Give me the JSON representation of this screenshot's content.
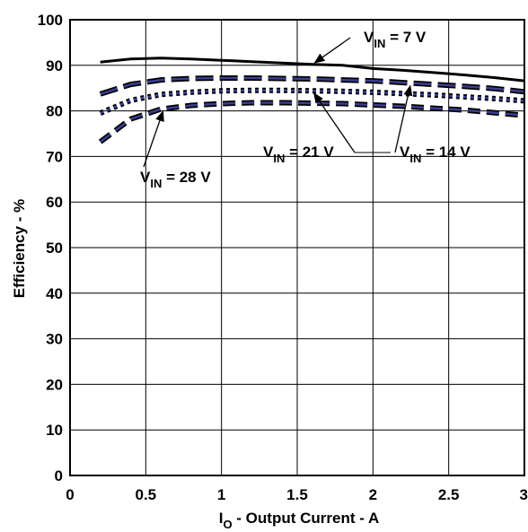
{
  "chart_data": {
    "type": "line",
    "title": "",
    "xlabel": {
      "pre": "I",
      "sub": "O",
      "post": " - Output Current - A"
    },
    "ylabel": "Efficiency - %",
    "xlim": [
      0,
      3
    ],
    "ylim": [
      0,
      100
    ],
    "xticks": [
      0,
      0.5,
      1,
      1.5,
      2,
      2.5,
      3
    ],
    "xtick_labels": [
      "0",
      "0.5",
      "1",
      "1.5",
      "2",
      "2.5",
      "3"
    ],
    "yticks": [
      0,
      10,
      20,
      30,
      40,
      50,
      60,
      70,
      80,
      90,
      100
    ],
    "ytick_labels": [
      "0",
      "10",
      "20",
      "30",
      "40",
      "50",
      "60",
      "70",
      "80",
      "90",
      "100"
    ],
    "grid": true,
    "legend": "none",
    "series": [
      {
        "name": "VIN = 7 V",
        "style": "solid",
        "x": [
          0.2,
          0.4,
          0.6,
          0.8,
          1.0,
          1.2,
          1.4,
          1.6,
          1.8,
          2.0,
          2.2,
          2.4,
          2.6,
          2.8,
          3.0
        ],
        "y": [
          90.7,
          91.4,
          91.6,
          91.4,
          91.1,
          90.8,
          90.5,
          90.2,
          90.0,
          89.3,
          88.9,
          88.4,
          87.9,
          87.3,
          86.6
        ]
      },
      {
        "name": "VIN = 14 V",
        "style": "long-dash",
        "x": [
          0.2,
          0.4,
          0.6,
          0.8,
          1.0,
          1.2,
          1.4,
          1.6,
          1.8,
          2.0,
          2.2,
          2.4,
          2.6,
          2.8,
          3.0
        ],
        "y": [
          83.7,
          85.8,
          86.8,
          87.1,
          87.2,
          87.2,
          87.1,
          87.0,
          86.8,
          86.6,
          86.2,
          85.8,
          85.4,
          84.9,
          84.2
        ]
      },
      {
        "name": "VIN = 21 V",
        "style": "dotted",
        "x": [
          0.2,
          0.4,
          0.6,
          0.8,
          1.0,
          1.2,
          1.4,
          1.6,
          1.8,
          2.0,
          2.2,
          2.4,
          2.6,
          2.8,
          3.0
        ],
        "y": [
          79.5,
          82.3,
          83.6,
          84.1,
          84.4,
          84.5,
          84.5,
          84.4,
          84.3,
          84.1,
          83.8,
          83.5,
          83.1,
          82.7,
          82.2
        ]
      },
      {
        "name": "VIN = 28 V",
        "style": "dash",
        "x": [
          0.2,
          0.4,
          0.6,
          0.8,
          1.0,
          1.2,
          1.4,
          1.6,
          1.8,
          2.0,
          2.2,
          2.4,
          2.6,
          2.8,
          3.0
        ],
        "y": [
          73.2,
          78.2,
          80.4,
          81.2,
          81.6,
          81.8,
          81.8,
          81.7,
          81.6,
          81.3,
          81.0,
          80.6,
          80.2,
          79.6,
          79.0
        ]
      }
    ],
    "annotations": [
      {
        "pre": "V",
        "sub": "IN",
        "post": " = 7 V",
        "series": 0
      },
      {
        "pre": "V",
        "sub": "IN",
        "post": " = 14 V",
        "series": 1
      },
      {
        "pre": "V",
        "sub": "IN",
        "post": " = 21 V",
        "series": 2
      },
      {
        "pre": "V",
        "sub": "IN",
        "post": " = 28 V",
        "series": 3
      }
    ],
    "colors": {
      "axis": "#000000",
      "grid": "#000000",
      "line": "#000000",
      "dash_fill": "#3a3f8f"
    }
  }
}
